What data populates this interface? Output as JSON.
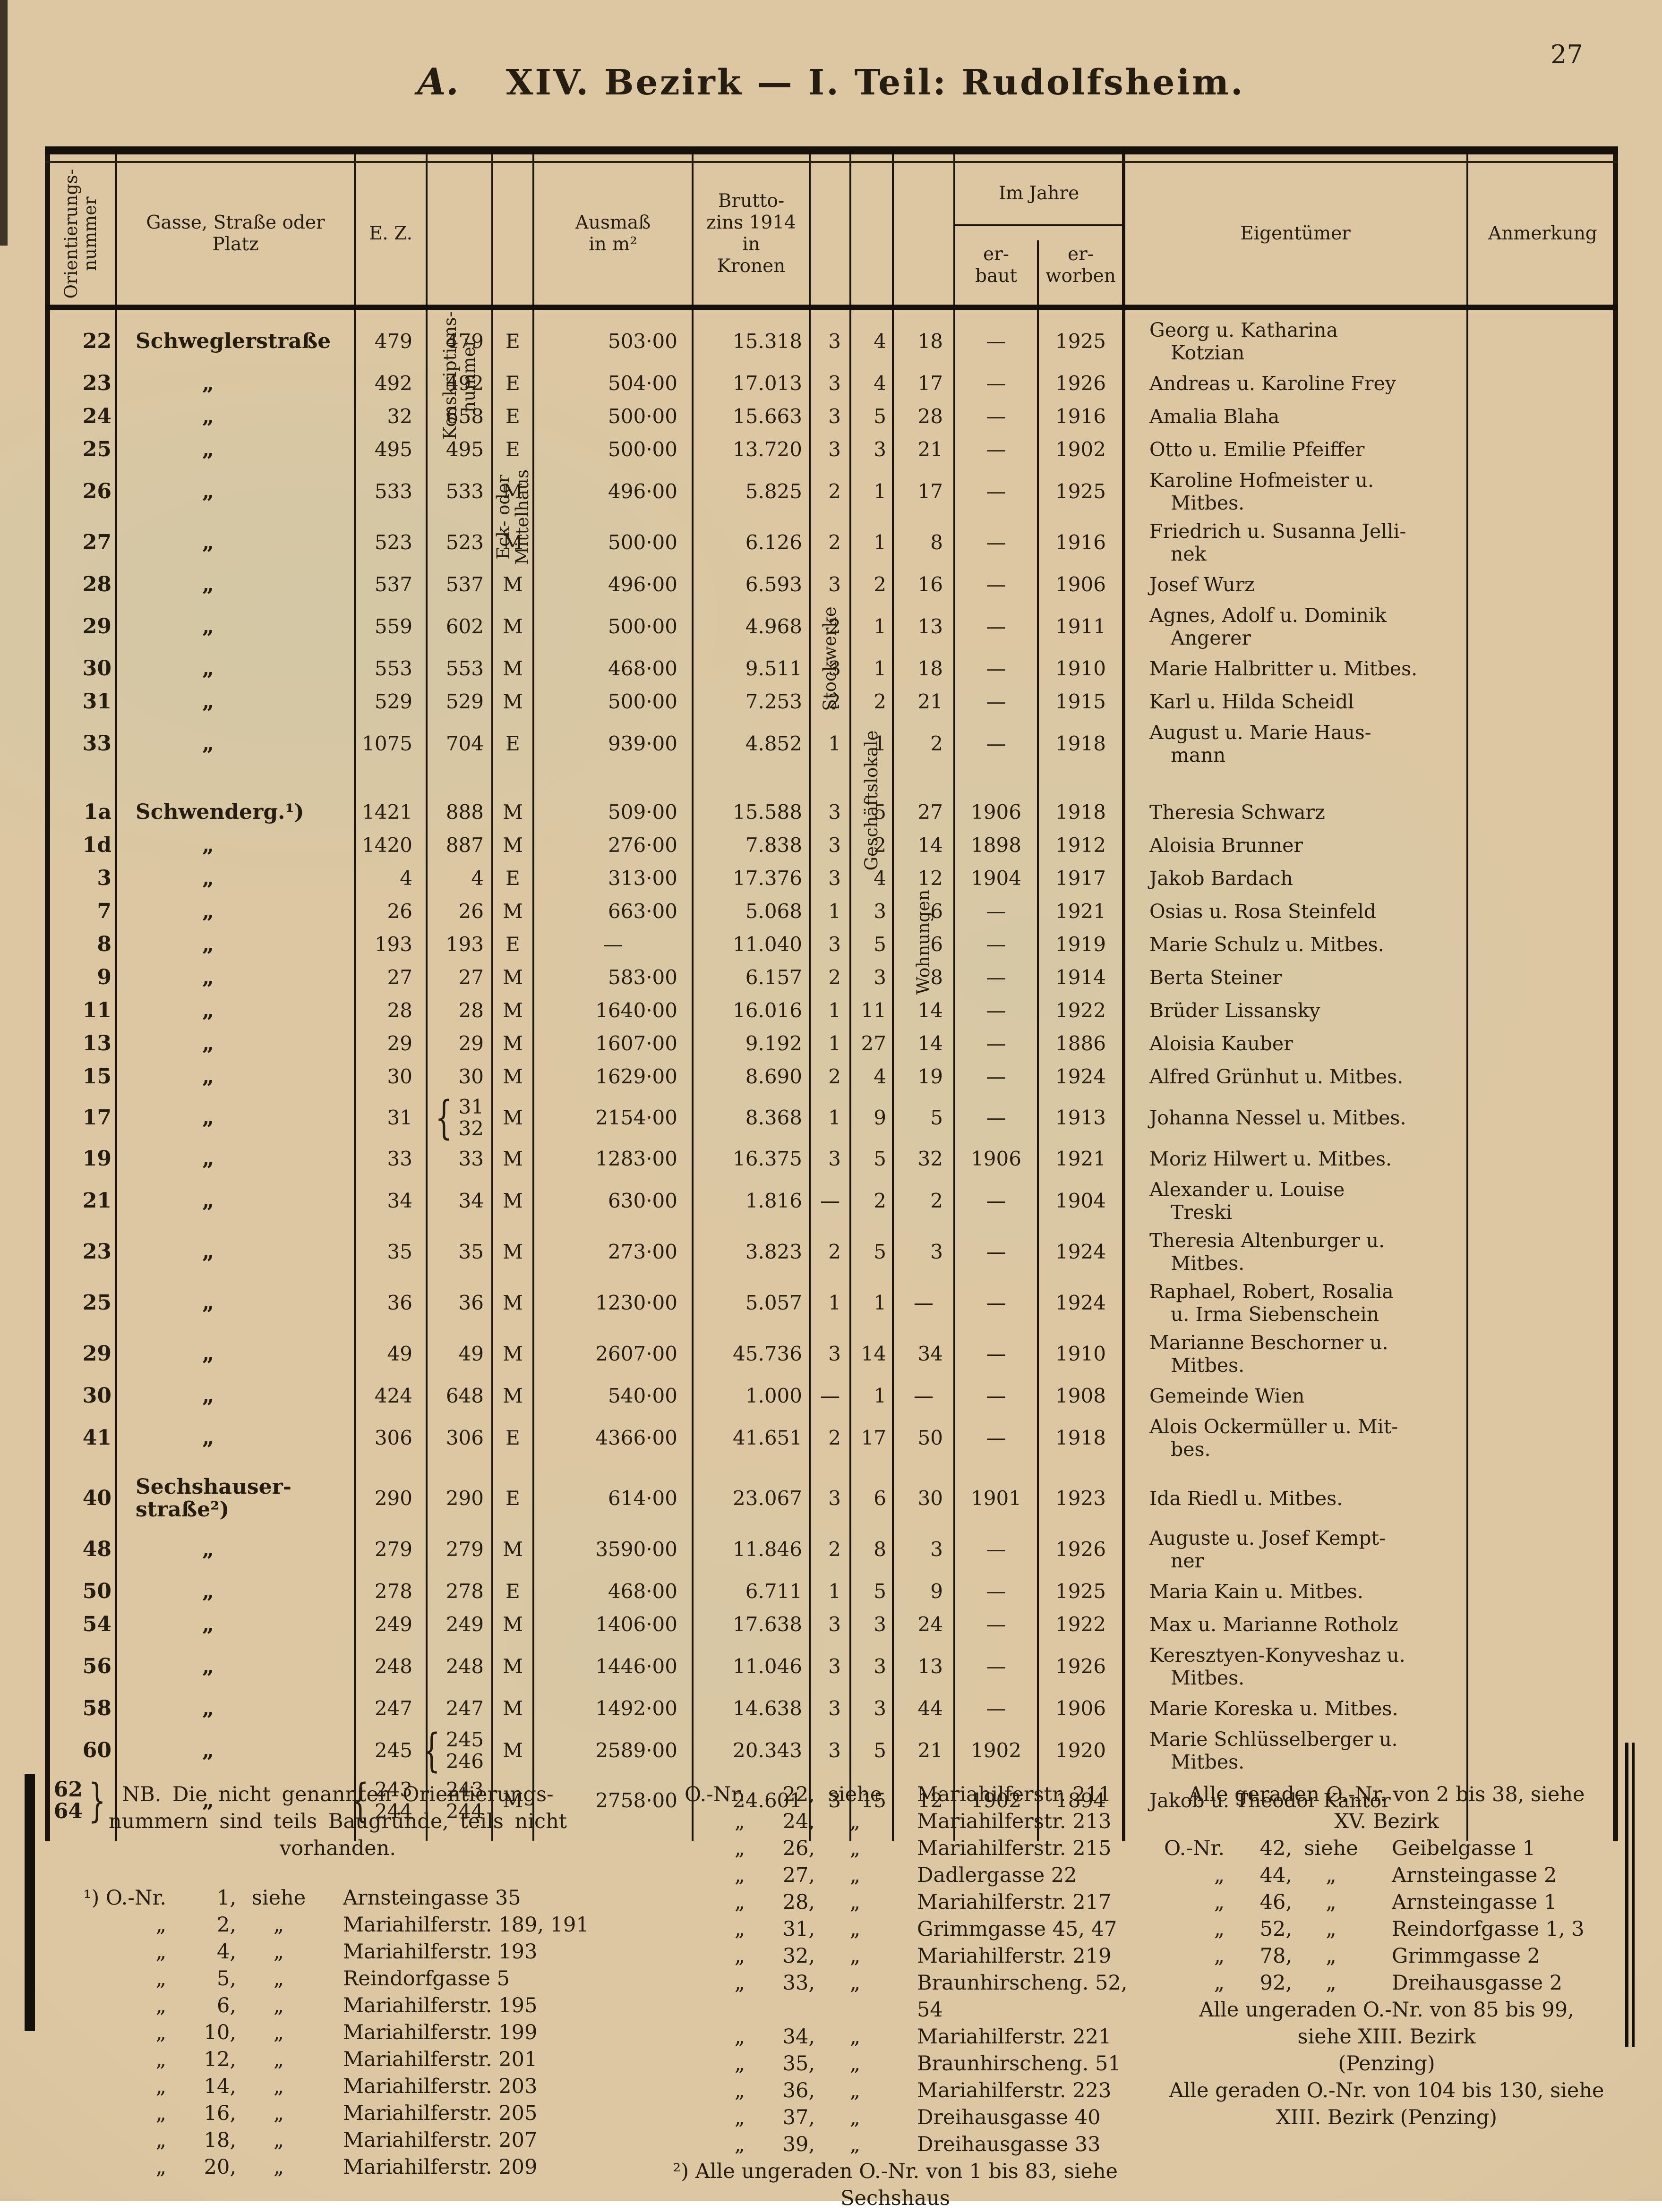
{
  "page": {
    "number": "27"
  },
  "title": {
    "prefix": "A.",
    "text": "XIV. Bezirk — I. Teil: Rudolfsheim."
  },
  "table": {
    "headers": {
      "onr": "Orientierungs-\nnummer",
      "street": "Gasse, Straße oder\nPlatz",
      "ez": "E. Z.",
      "konskr": "Konskriptions-\nnummer",
      "eck": "Eck- oder\nMittelhaus",
      "ausmass": "Ausmaß\nin m²",
      "brutto": "Brutto-\nzins 1914\nin\nKronen",
      "stock": "Stockwerke",
      "geschaeft": "Geschäftslokale",
      "wohn": "Wohnungen",
      "imjahre": "Im Jahre",
      "erbaut": "er-\nbaut",
      "erworben": "er-\nworben",
      "eigentuemer": "Eigentümer",
      "anmerkung": "Anmerkung"
    },
    "rows": [
      {
        "o": "22",
        "s": "Schweglerstraße",
        "sb": 1,
        "ez": "479",
        "k": "479",
        "em": "E",
        "a": "503·00",
        "b": "15.318",
        "st": "3",
        "g": "4",
        "w": "18",
        "eb": "—",
        "ew": "1925",
        "own": "Georg u. Katharina\nKotzian",
        "an": ""
      },
      {
        "o": "23",
        "s": "„",
        "ez": "492",
        "k": "492",
        "em": "E",
        "a": "504·00",
        "b": "17.013",
        "st": "3",
        "g": "4",
        "w": "17",
        "eb": "—",
        "ew": "1926",
        "own": "Andreas u. Karoline Frey",
        "an": ""
      },
      {
        "o": "24",
        "s": "„",
        "ez": "32",
        "k": "658",
        "em": "E",
        "a": "500·00",
        "b": "15.663",
        "st": "3",
        "g": "5",
        "w": "28",
        "eb": "—",
        "ew": "1916",
        "own": "Amalia Blaha",
        "an": ""
      },
      {
        "o": "25",
        "s": "„",
        "ez": "495",
        "k": "495",
        "em": "E",
        "a": "500·00",
        "b": "13.720",
        "st": "3",
        "g": "3",
        "w": "21",
        "eb": "—",
        "ew": "1902",
        "own": "Otto u. Emilie Pfeiffer",
        "an": ""
      },
      {
        "o": "26",
        "s": "„",
        "ez": "533",
        "k": "533",
        "em": "M",
        "a": "496·00",
        "b": "5.825",
        "st": "2",
        "g": "1",
        "w": "17",
        "eb": "—",
        "ew": "1925",
        "own": "Karoline Hofmeister u.\nMitbes.",
        "an": ""
      },
      {
        "o": "27",
        "s": "„",
        "ez": "523",
        "k": "523",
        "em": "M",
        "a": "500·00",
        "b": "6.126",
        "st": "2",
        "g": "1",
        "w": "8",
        "eb": "—",
        "ew": "1916",
        "own": "Friedrich u. Susanna Jelli-\nnek",
        "an": ""
      },
      {
        "o": "28",
        "s": "„",
        "ez": "537",
        "k": "537",
        "em": "M",
        "a": "496·00",
        "b": "6.593",
        "st": "3",
        "g": "2",
        "w": "16",
        "eb": "—",
        "ew": "1906",
        "own": "Josef Wurz",
        "an": ""
      },
      {
        "o": "29",
        "s": "„",
        "ez": "559",
        "k": "602",
        "em": "M",
        "a": "500·00",
        "b": "4.968",
        "st": "2",
        "g": "1",
        "w": "13",
        "eb": "—",
        "ew": "1911",
        "own": "Agnes, Adolf u. Dominik\nAngerer",
        "an": ""
      },
      {
        "o": "30",
        "s": "„",
        "ez": "553",
        "k": "553",
        "em": "M",
        "a": "468·00",
        "b": "9.511",
        "st": "3",
        "g": "1",
        "w": "18",
        "eb": "—",
        "ew": "1910",
        "own": "Marie Halbritter u. Mitbes.",
        "an": ""
      },
      {
        "o": "31",
        "s": "„",
        "ez": "529",
        "k": "529",
        "em": "M",
        "a": "500·00",
        "b": "7.253",
        "st": "2",
        "g": "2",
        "w": "21",
        "eb": "—",
        "ew": "1915",
        "own": "Karl u. Hilda Scheidl",
        "an": ""
      },
      {
        "o": "33",
        "s": "„",
        "ez": "1075",
        "k": "704",
        "em": "E",
        "a": "939·00",
        "b": "4.852",
        "st": "1",
        "g": "1",
        "w": "2",
        "eb": "—",
        "ew": "1918",
        "own": "August u. Marie Haus-\nmann",
        "an": ""
      },
      {
        "o": "1a",
        "gap": 1,
        "s": "Schwenderg.¹)",
        "sb": 1,
        "ez": "1421",
        "k": "888",
        "em": "M",
        "a": "509·00",
        "b": "15.588",
        "st": "3",
        "g": "5",
        "w": "27",
        "eb": "1906",
        "ew": "1918",
        "own": "Theresia Schwarz",
        "an": ""
      },
      {
        "o": "1d",
        "s": "„",
        "ez": "1420",
        "k": "887",
        "em": "M",
        "a": "276·00",
        "b": "7.838",
        "st": "3",
        "g": "2",
        "w": "14",
        "eb": "1898",
        "ew": "1912",
        "own": "Aloisia Brunner",
        "an": ""
      },
      {
        "o": "3",
        "s": "„",
        "ez": "4",
        "k": "4",
        "em": "E",
        "a": "313·00",
        "b": "17.376",
        "st": "3",
        "g": "4",
        "w": "12",
        "eb": "1904",
        "ew": "1917",
        "own": "Jakob Bardach",
        "an": ""
      },
      {
        "o": "7",
        "s": "„",
        "ez": "26",
        "k": "26",
        "em": "M",
        "a": "663·00",
        "b": "5.068",
        "st": "1",
        "g": "3",
        "w": "6",
        "eb": "—",
        "ew": "1921",
        "own": "Osias u. Rosa Steinfeld",
        "an": ""
      },
      {
        "o": "8",
        "s": "„",
        "ez": "193",
        "k": "193",
        "em": "E",
        "a": "—",
        "b": "11.040",
        "st": "3",
        "g": "5",
        "w": "6",
        "eb": "—",
        "ew": "1919",
        "own": "Marie Schulz u. Mitbes.",
        "an": ""
      },
      {
        "o": "9",
        "s": "„",
        "ez": "27",
        "k": "27",
        "em": "M",
        "a": "583·00",
        "b": "6.157",
        "st": "2",
        "g": "3",
        "w": "8",
        "eb": "—",
        "ew": "1914",
        "own": "Berta Steiner",
        "an": ""
      },
      {
        "o": "11",
        "s": "„",
        "ez": "28",
        "k": "28",
        "em": "M",
        "a": "1640·00",
        "b": "16.016",
        "st": "1",
        "g": "11",
        "w": "14",
        "eb": "—",
        "ew": "1922",
        "own": "Brüder Lissansky",
        "an": ""
      },
      {
        "o": "13",
        "s": "„",
        "ez": "29",
        "k": "29",
        "em": "M",
        "a": "1607·00",
        "b": "9.192",
        "st": "1",
        "g": "27",
        "w": "14",
        "eb": "—",
        "ew": "1886",
        "own": "Aloisia Kauber",
        "an": ""
      },
      {
        "o": "15",
        "s": "„",
        "ez": "30",
        "k": "30",
        "em": "M",
        "a": "1629·00",
        "b": "8.690",
        "st": "2",
        "g": "4",
        "w": "19",
        "eb": "—",
        "ew": "1924",
        "own": "Alfred Grünhut u. Mitbes.",
        "an": ""
      },
      {
        "o": "17",
        "s": "„",
        "ez": "31",
        "k": "31\n32",
        "kbrace": 1,
        "em": "M",
        "a": "2154·00",
        "b": "8.368",
        "st": "1",
        "g": "9",
        "w": "5",
        "eb": "—",
        "ew": "1913",
        "own": "Johanna Nessel u. Mitbes.",
        "an": ""
      },
      {
        "o": "19",
        "s": "„",
        "ez": "33",
        "k": "33",
        "em": "M",
        "a": "1283·00",
        "b": "16.375",
        "st": "3",
        "g": "5",
        "w": "32",
        "eb": "1906",
        "ew": "1921",
        "own": "Moriz Hilwert u. Mitbes.",
        "an": ""
      },
      {
        "o": "21",
        "s": "„",
        "ez": "34",
        "k": "34",
        "em": "M",
        "a": "630·00",
        "b": "1.816",
        "st": "—",
        "g": "2",
        "w": "2",
        "eb": "—",
        "ew": "1904",
        "own": "Alexander u. Louise\nTreski",
        "an": ""
      },
      {
        "o": "23",
        "s": "„",
        "ez": "35",
        "k": "35",
        "em": "M",
        "a": "273·00",
        "b": "3.823",
        "st": "2",
        "g": "5",
        "w": "3",
        "eb": "—",
        "ew": "1924",
        "own": "Theresia Altenburger u.\nMitbes.",
        "an": ""
      },
      {
        "o": "25",
        "s": "„",
        "ez": "36",
        "k": "36",
        "em": "M",
        "a": "1230·00",
        "b": "5.057",
        "st": "1",
        "g": "1",
        "w": "—",
        "eb": "—",
        "ew": "1924",
        "own": "Raphael, Robert, Rosalia\nu. Irma Siebenschein",
        "an": ""
      },
      {
        "o": "29",
        "s": "„",
        "ez": "49",
        "k": "49",
        "em": "M",
        "a": "2607·00",
        "b": "45.736",
        "st": "3",
        "g": "14",
        "w": "34",
        "eb": "—",
        "ew": "1910",
        "own": "Marianne Beschorner u.\nMitbes.",
        "an": ""
      },
      {
        "o": "30",
        "s": "„",
        "ez": "424",
        "k": "648",
        "em": "M",
        "a": "540·00",
        "b": "1.000",
        "st": "—",
        "g": "1",
        "w": "—",
        "eb": "—",
        "ew": "1908",
        "own": "Gemeinde Wien",
        "an": ""
      },
      {
        "o": "41",
        "s": "„",
        "ez": "306",
        "k": "306",
        "em": "E",
        "a": "4366·00",
        "b": "41.651",
        "st": "2",
        "g": "17",
        "w": "50",
        "eb": "—",
        "ew": "1918",
        "own": "Alois Ockermüller u. Mit-\nbes.",
        "an": ""
      },
      {
        "o": "40",
        "gap2": 1,
        "s": "Sechshauser-\nstraße²)",
        "sb": 1,
        "ez": "290",
        "k": "290",
        "em": "E",
        "a": "614·00",
        "b": "23.067",
        "st": "3",
        "g": "6",
        "w": "30",
        "eb": "1901",
        "ew": "1923",
        "own": "Ida Riedl u. Mitbes.",
        "an": ""
      },
      {
        "o": "48",
        "s": "„",
        "ez": "279",
        "k": "279",
        "em": "M",
        "a": "3590·00",
        "b": "11.846",
        "st": "2",
        "g": "8",
        "w": "3",
        "eb": "—",
        "ew": "1926",
        "own": "Auguste u. Josef Kempt-\nner",
        "an": ""
      },
      {
        "o": "50",
        "s": "„",
        "ez": "278",
        "k": "278",
        "em": "E",
        "a": "468·00",
        "b": "6.711",
        "st": "1",
        "g": "5",
        "w": "9",
        "eb": "—",
        "ew": "1925",
        "own": "Maria Kain u. Mitbes.",
        "an": ""
      },
      {
        "o": "54",
        "s": "„",
        "ez": "249",
        "k": "249",
        "em": "M",
        "a": "1406·00",
        "b": "17.638",
        "st": "3",
        "g": "3",
        "w": "24",
        "eb": "—",
        "ew": "1922",
        "own": "Max u. Marianne Rotholz",
        "an": ""
      },
      {
        "o": "56",
        "s": "„",
        "ez": "248",
        "k": "248",
        "em": "M",
        "a": "1446·00",
        "b": "11.046",
        "st": "3",
        "g": "3",
        "w": "13",
        "eb": "—",
        "ew": "1926",
        "own": "Keresztyen-Konyveshaz u.\nMitbes.",
        "an": ""
      },
      {
        "o": "58",
        "s": "„",
        "ez": "247",
        "k": "247",
        "em": "M",
        "a": "1492·00",
        "b": "14.638",
        "st": "3",
        "g": "3",
        "w": "44",
        "eb": "—",
        "ew": "1906",
        "own": "Marie Koreska u. Mitbes.",
        "an": ""
      },
      {
        "o": "60",
        "s": "„",
        "ez": "245",
        "k": "245\n246",
        "kbrace": 1,
        "em": "M",
        "a": "2589·00",
        "b": "20.343",
        "st": "3",
        "g": "5",
        "w": "21",
        "eb": "1902",
        "ew": "1920",
        "own": "Marie Schlüsselberger u.\nMitbes.",
        "an": ""
      },
      {
        "o": "62\n64",
        "obrace": 1,
        "s": "„",
        "ez": "243\n244",
        "ezbrace": 1,
        "k": "243\n244",
        "em": "M",
        "a": "2758·00",
        "b": "24.601",
        "st": "3",
        "g": "15",
        "w": "12",
        "eb": "1902",
        "ew": "1894",
        "own": "Jakob u. Theodor Kantor",
        "an": ""
      }
    ]
  },
  "footnotes": {
    "nb": "NB. Die nicht genannten Orientierungs-\nnummern sind teils Baugründe, teils nicht\nvorhanden.",
    "fn1": [
      {
        "m": "¹) O.-Nr.",
        "n": "1,",
        "s": "siehe",
        "d": "Arnsteingasse 35"
      },
      {
        "m": "„",
        "n": "2,",
        "s": "„",
        "d": "Mariahilferstr. 189, 191"
      },
      {
        "m": "„",
        "n": "4,",
        "s": "„",
        "d": "Mariahilferstr. 193"
      },
      {
        "m": "„",
        "n": "5,",
        "s": "„",
        "d": "Reindorfgasse 5"
      },
      {
        "m": "„",
        "n": "6,",
        "s": "„",
        "d": "Mariahilferstr. 195"
      },
      {
        "m": "„",
        "n": "10,",
        "s": "„",
        "d": "Mariahilferstr. 199"
      },
      {
        "m": "„",
        "n": "12,",
        "s": "„",
        "d": "Mariahilferstr. 201"
      },
      {
        "m": "„",
        "n": "14,",
        "s": "„",
        "d": "Mariahilferstr. 203"
      },
      {
        "m": "„",
        "n": "16,",
        "s": "„",
        "d": "Mariahilferstr. 205"
      },
      {
        "m": "„",
        "n": "18,",
        "s": "„",
        "d": "Mariahilferstr. 207"
      },
      {
        "m": "„",
        "n": "20,",
        "s": "„",
        "d": "Mariahilferstr. 209"
      }
    ],
    "col2": [
      {
        "m": "O.-Nr.",
        "n": "22,",
        "s": "siehe",
        "d": "Mariahilferstr. 211"
      },
      {
        "m": "„",
        "n": "24,",
        "s": "„",
        "d": "Mariahilferstr. 213"
      },
      {
        "m": "„",
        "n": "26,",
        "s": "„",
        "d": "Mariahilferstr. 215"
      },
      {
        "m": "„",
        "n": "27,",
        "s": "„",
        "d": "Dadlergasse 22"
      },
      {
        "m": "„",
        "n": "28,",
        "s": "„",
        "d": "Mariahilferstr. 217"
      },
      {
        "m": "„",
        "n": "31,",
        "s": "„",
        "d": "Grimmgasse 45, 47"
      },
      {
        "m": "„",
        "n": "32,",
        "s": "„",
        "d": "Mariahilferstr. 219"
      },
      {
        "m": "„",
        "n": "33,",
        "s": "„",
        "d": "Braunhirscheng. 52, 54"
      },
      {
        "m": "„",
        "n": "34,",
        "s": "„",
        "d": "Mariahilferstr. 221"
      },
      {
        "m": "„",
        "n": "35,",
        "s": "„",
        "d": "Braunhirscheng. 51"
      },
      {
        "m": "„",
        "n": "36,",
        "s": "„",
        "d": "Mariahilferstr. 223"
      },
      {
        "m": "„",
        "n": "37,",
        "s": "„",
        "d": "Dreihausgasse 40"
      },
      {
        "m": "„",
        "n": "39,",
        "s": "„",
        "d": "Dreihausgasse 33"
      }
    ],
    "fn2": "²) Alle ungeraden O.-Nr. von 1 bis 83, siehe\nSechshaus",
    "col3_intro": "Alle geraden O.-Nr. von 2 bis 38, siehe\nXV. Bezirk",
    "col3": [
      {
        "m": "O.-Nr.",
        "n": "42,",
        "s": "siehe",
        "d": "Geibelgasse 1"
      },
      {
        "m": "„",
        "n": "44,",
        "s": "„",
        "d": "Arnsteingasse 2"
      },
      {
        "m": "„",
        "n": "46,",
        "s": "„",
        "d": "Arnsteingasse 1"
      },
      {
        "m": "„",
        "n": "52,",
        "s": "„",
        "d": "Reindorfgasse 1, 3"
      },
      {
        "m": "„",
        "n": "78,",
        "s": "„",
        "d": "Grimmgasse 2"
      },
      {
        "m": "„",
        "n": "92,",
        "s": "„",
        "d": "Dreihausgasse 2"
      }
    ],
    "col3_odd": "Alle ungeraden O.-Nr. von 85 bis 99,\nsiehe XIII. Bezirk\n(Penzing)",
    "col3_even": "Alle geraden O.-Nr. von 104 bis 130, siehe\nXIII. Bezirk (Penzing)"
  }
}
